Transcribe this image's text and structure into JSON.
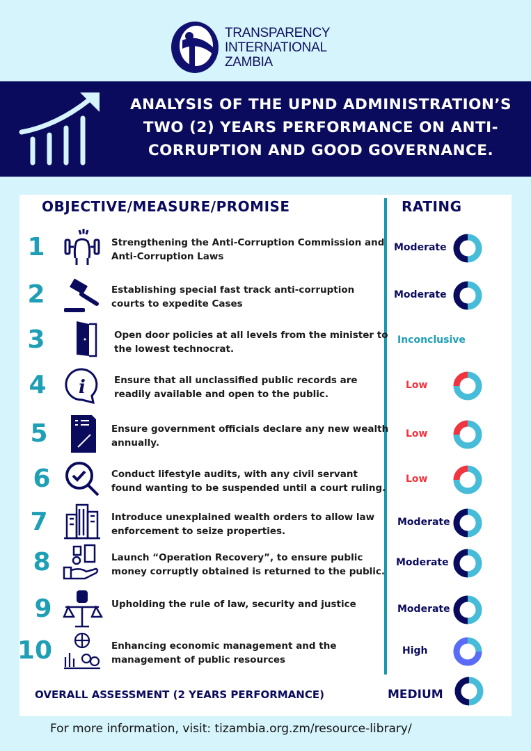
{
  "logo": {
    "text_lines": [
      "TRANSPARENCY",
      "INTERNATIONAL",
      "ZAMBIA"
    ]
  },
  "title": "ANALYSIS OF THE UPND ADMINISTRATION’S TWO (2) YEARS PERFORMANCE ON ANTI-CORRUPTION AND GOOD GOVERNANCE.",
  "headers": {
    "objective": "OBJECTIVE/MEASURE/PROMISE",
    "rating": "RATING"
  },
  "colors": {
    "navy": "#0b0b5e",
    "cyan": "#46bcd9",
    "red": "#f2343e",
    "high": "#5a6cf7",
    "teal": "#1f9fb5",
    "background": "#d5f4fb"
  },
  "items": [
    {
      "number": "1",
      "icon": "strength-dumbbell-icon",
      "text": "Strengthening the Anti-Corruption Commission and Anti-Corruption Laws",
      "rating": "Moderate",
      "level": 0.5,
      "level_color": "navy"
    },
    {
      "number": "2",
      "icon": "gavel-icon",
      "text": "Establishing special fast track anti-corruption courts to expedite Cases",
      "rating": "Moderate",
      "level": 0.5,
      "level_color": "navy"
    },
    {
      "number": "3",
      "icon": "open-door-icon",
      "text": "Open door policies at all levels from the minister to the lowest technocrat.",
      "rating": "Inconclusive",
      "level": null,
      "level_color": "teal"
    },
    {
      "number": "4",
      "icon": "info-bubble-icon",
      "text": "Ensure that all unclassified public records are readily available and open to the public.",
      "rating": "Low",
      "level": 0.25,
      "level_color": "red"
    },
    {
      "number": "5",
      "icon": "document-pen-icon",
      "text": "Ensure government officials declare any new wealth annually.",
      "rating": "Low",
      "level": 0.25,
      "level_color": "red"
    },
    {
      "number": "6",
      "icon": "magnifier-check-icon",
      "text": "Conduct lifestyle audits, with any civil servant found wanting to be suspended until a court ruling.",
      "rating": "Low",
      "level": 0.25,
      "level_color": "red"
    },
    {
      "number": "7",
      "icon": "buildings-icon",
      "text": "Introduce unexplained wealth orders to allow law enforcement to seize  properties.",
      "rating": "Moderate",
      "level": 0.5,
      "level_color": "navy"
    },
    {
      "number": "8",
      "icon": "money-hand-icon",
      "text": "Launch “Operation Recovery”, to ensure public money corruptly obtained is returned to the public.",
      "rating": "Moderate",
      "level": 0.5,
      "level_color": "navy"
    },
    {
      "number": "9",
      "icon": "justice-scales-fist-icon",
      "text": "Upholding the rule of law, security and justice",
      "rating": "Moderate",
      "level": 0.5,
      "level_color": "navy"
    },
    {
      "number": "10",
      "icon": "economy-coins-icon",
      "text": "Enhancing economic management and the management of public resources",
      "rating": "High",
      "level": 0.75,
      "level_color": "high"
    }
  ],
  "overall": {
    "label": "OVERALL ASSESSMENT (2 YEARS PERFORMANCE)",
    "rating": "MEDIUM",
    "level": 0.5,
    "level_color": "navy"
  },
  "footer": "For more information, visit: tizambia.org.zm/resource-library/"
}
